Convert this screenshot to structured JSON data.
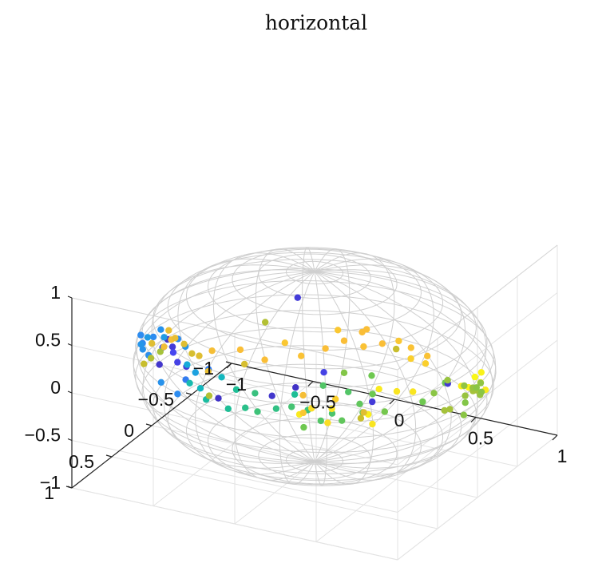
{
  "chart_data": {
    "type": "scatter",
    "title": "horizontal",
    "xlabel": "",
    "ylabel": "",
    "zlabel": "",
    "xlim": [
      -1,
      1
    ],
    "ylim": [
      -1,
      1
    ],
    "zlim": [
      -1,
      1
    ],
    "xticks": [
      "−1",
      "−0.5",
      "0",
      "0.5",
      "1"
    ],
    "yticks": [
      "−1",
      "−0.5",
      "0",
      "0.5",
      "1"
    ],
    "zticks": [
      "−1",
      "−0.5",
      "0",
      "0.5",
      "1"
    ],
    "grid": true,
    "surface": "unit sphere wireframe",
    "colormap": "parula",
    "points": [
      {
        "x": -0.55,
        "y": 0.72,
        "z": 0.55,
        "c": 0.05
      },
      {
        "x": -0.48,
        "y": 0.8,
        "z": 0.55,
        "c": 0.08
      },
      {
        "x": -0.5,
        "y": 0.75,
        "z": 0.45,
        "c": 0.12
      },
      {
        "x": -0.42,
        "y": 0.86,
        "z": 0.45,
        "c": 0.1
      },
      {
        "x": -0.6,
        "y": 0.68,
        "z": 0.42,
        "c": 0.15
      },
      {
        "x": -0.38,
        "y": 0.83,
        "z": 0.4,
        "c": 0.08
      },
      {
        "x": -0.45,
        "y": 0.7,
        "z": 0.5,
        "c": 0.28
      },
      {
        "x": -0.52,
        "y": 0.65,
        "z": 0.52,
        "c": 0.25
      },
      {
        "x": -0.35,
        "y": 0.9,
        "z": 0.32,
        "c": 0.22
      },
      {
        "x": -0.62,
        "y": 0.62,
        "z": 0.48,
        "c": 0.3
      },
      {
        "x": -0.4,
        "y": 0.78,
        "z": 0.38,
        "c": 0.35
      },
      {
        "x": -0.3,
        "y": 0.88,
        "z": 0.4,
        "c": 0.32
      },
      {
        "x": -0.58,
        "y": 0.76,
        "z": 0.3,
        "c": 0.06
      },
      {
        "x": -0.66,
        "y": 0.58,
        "z": 0.52,
        "c": 0.27
      },
      {
        "x": -0.72,
        "y": 0.55,
        "z": 0.4,
        "c": 0.25
      },
      {
        "x": -0.78,
        "y": 0.5,
        "z": 0.34,
        "c": 0.3
      },
      {
        "x": -0.7,
        "y": 0.65,
        "z": 0.28,
        "c": 0.26
      },
      {
        "x": -0.85,
        "y": 0.42,
        "z": 0.2,
        "c": 0.24
      },
      {
        "x": -0.88,
        "y": 0.38,
        "z": 0.15,
        "c": 0.28
      },
      {
        "x": -0.8,
        "y": 0.52,
        "z": 0.22,
        "c": 0.27
      },
      {
        "x": -0.92,
        "y": 0.3,
        "z": 0.18,
        "c": 0.25
      },
      {
        "x": -0.35,
        "y": 0.85,
        "z": 0.25,
        "c": 0.45
      },
      {
        "x": -0.25,
        "y": 0.92,
        "z": 0.28,
        "c": 0.42
      },
      {
        "x": -0.2,
        "y": 0.95,
        "z": 0.2,
        "c": 0.48
      },
      {
        "x": -0.12,
        "y": 0.96,
        "z": 0.25,
        "c": 0.05
      },
      {
        "x": -0.05,
        "y": 0.98,
        "z": 0.18,
        "c": 0.5
      },
      {
        "x": 0.05,
        "y": 0.97,
        "z": 0.22,
        "c": 0.52
      },
      {
        "x": 0.12,
        "y": 0.96,
        "z": 0.2,
        "c": 0.55
      },
      {
        "x": 0.22,
        "y": 0.93,
        "z": 0.25,
        "c": 0.53
      },
      {
        "x": 0.3,
        "y": 0.9,
        "z": 0.28,
        "c": 0.56
      },
      {
        "x": 0.38,
        "y": 0.86,
        "z": 0.25,
        "c": 0.55
      },
      {
        "x": 0.45,
        "y": 0.84,
        "z": 0.15,
        "c": 0.58
      },
      {
        "x": 0.5,
        "y": 0.8,
        "z": 0.22,
        "c": 0.57
      },
      {
        "x": 0.55,
        "y": 0.78,
        "z": 0.15,
        "c": 0.6
      },
      {
        "x": 0.35,
        "y": 0.85,
        "z": 0.05,
        "c": 0.62
      },
      {
        "x": 0.28,
        "y": 0.82,
        "z": 0.35,
        "c": 0.5
      },
      {
        "x": 0.18,
        "y": 0.9,
        "z": 0.35,
        "c": 0.06
      },
      {
        "x": 0.42,
        "y": 0.75,
        "z": 0.45,
        "c": 0.58
      },
      {
        "x": 0.55,
        "y": 0.7,
        "z": 0.4,
        "c": 0.58
      },
      {
        "x": 0.62,
        "y": 0.7,
        "z": 0.3,
        "c": 0.6
      },
      {
        "x": 0.65,
        "y": 0.6,
        "z": 0.35,
        "c": 0.62
      },
      {
        "x": 0.6,
        "y": 0.62,
        "z": 0.15,
        "c": 0.6
      },
      {
        "x": 0.7,
        "y": 0.55,
        "z": 0.15,
        "c": 0.63
      },
      {
        "x": 0.4,
        "y": 0.7,
        "z": 0.55,
        "c": 0.1
      },
      {
        "x": 0.5,
        "y": 0.65,
        "z": 0.55,
        "c": 0.65
      },
      {
        "x": 0.62,
        "y": 0.55,
        "z": 0.5,
        "c": 0.62
      },
      {
        "x": 0.75,
        "y": 0.5,
        "z": 0.35,
        "c": 0.95
      },
      {
        "x": 0.68,
        "y": 0.58,
        "z": 0.4,
        "c": 0.96
      },
      {
        "x": 0.8,
        "y": 0.4,
        "z": 0.3,
        "c": 0.95
      },
      {
        "x": 0.85,
        "y": 0.38,
        "z": 0.2,
        "c": 0.62
      },
      {
        "x": 0.88,
        "y": 0.3,
        "z": 0.25,
        "c": 0.66
      },
      {
        "x": 0.9,
        "y": 0.2,
        "z": 0.3,
        "c": 0.62
      },
      {
        "x": 0.95,
        "y": 0.1,
        "z": 0.22,
        "c": 0.97
      },
      {
        "x": 0.97,
        "y": 0.05,
        "z": 0.18,
        "c": 0.98
      },
      {
        "x": 0.96,
        "y": -0.05,
        "z": 0.22,
        "c": 0.99
      },
      {
        "x": 0.98,
        "y": -0.08,
        "z": 0.15,
        "c": 0.97
      },
      {
        "x": 0.95,
        "y": -0.15,
        "z": 0.2,
        "c": 0.98
      },
      {
        "x": 0.99,
        "y": -0.12,
        "z": 0.05,
        "c": 0.96
      },
      {
        "x": 0.92,
        "y": 0.25,
        "z": 0.05,
        "c": 0.7
      },
      {
        "x": 0.9,
        "y": -0.05,
        "z": 0.0,
        "c": 0.68
      },
      {
        "x": 0.92,
        "y": -0.15,
        "z": 0.0,
        "c": 0.7
      },
      {
        "x": 0.88,
        "y": 0.1,
        "z": -0.05,
        "c": 0.7
      },
      {
        "x": 0.85,
        "y": -0.25,
        "z": -0.1,
        "c": 0.7
      },
      {
        "x": 0.8,
        "y": -0.35,
        "z": -0.15,
        "c": 0.68
      },
      {
        "x": 0.82,
        "y": -0.4,
        "z": -0.25,
        "c": 0.68
      },
      {
        "x": 0.78,
        "y": -0.5,
        "z": -0.3,
        "c": 0.66
      },
      {
        "x": 0.75,
        "y": -0.55,
        "z": -0.25,
        "c": 0.67
      },
      {
        "x": 0.7,
        "y": -0.6,
        "z": -0.35,
        "c": 0.66
      },
      {
        "x": 0.68,
        "y": -0.5,
        "z": -0.45,
        "c": 0.65
      },
      {
        "x": 0.72,
        "y": -0.4,
        "z": -0.5,
        "c": 0.66
      },
      {
        "x": 0.6,
        "y": -0.65,
        "z": -0.4,
        "c": 0.67
      },
      {
        "x": 0.6,
        "y": 0.5,
        "z": -0.05,
        "c": 0.95
      },
      {
        "x": 0.55,
        "y": 0.45,
        "z": 0.0,
        "c": 0.97
      },
      {
        "x": 0.4,
        "y": 0.6,
        "z": 0.1,
        "c": 0.95
      },
      {
        "x": 0.3,
        "y": 0.65,
        "z": 0.1,
        "c": 0.93
      },
      {
        "x": 0.25,
        "y": 0.7,
        "z": 0.05,
        "c": 0.96
      },
      {
        "x": 0.48,
        "y": 0.4,
        "z": -0.1,
        "c": 0.75
      },
      {
        "x": 0.4,
        "y": 0.2,
        "z": -0.2,
        "c": 0.8
      },
      {
        "x": 0.35,
        "y": 0.55,
        "z": -0.1,
        "c": 0.93
      },
      {
        "x": 0.2,
        "y": 0.55,
        "z": -0.05,
        "c": 0.88
      },
      {
        "x": 0.15,
        "y": 0.45,
        "z": 0.05,
        "c": 0.85
      },
      {
        "x": 0.3,
        "y": 0.35,
        "z": 0.0,
        "c": 0.9
      },
      {
        "x": -0.95,
        "y": 0.1,
        "z": -0.05,
        "c": 0.8
      },
      {
        "x": -0.92,
        "y": -0.05,
        "z": 0.0,
        "c": 0.82
      },
      {
        "x": -0.9,
        "y": 0.05,
        "z": -0.1,
        "c": 0.84
      },
      {
        "x": -0.88,
        "y": 0.0,
        "z": -0.05,
        "c": 0.85
      },
      {
        "x": -0.93,
        "y": -0.15,
        "z": -0.15,
        "c": 0.82
      },
      {
        "x": -0.95,
        "y": 0.2,
        "z": -0.2,
        "c": 0.75
      },
      {
        "x": -0.85,
        "y": -0.1,
        "z": -0.15,
        "c": 0.8
      },
      {
        "x": -0.98,
        "y": 0.05,
        "z": -0.25,
        "c": 0.72
      },
      {
        "x": -0.8,
        "y": 0.3,
        "z": 0.05,
        "c": 0.7
      },
      {
        "x": -0.9,
        "y": -0.3,
        "z": -0.4,
        "c": 0.78
      },
      {
        "x": -0.88,
        "y": -0.35,
        "z": -0.45,
        "c": 0.8
      },
      {
        "x": -0.85,
        "y": -0.45,
        "z": -0.45,
        "c": 0.85
      },
      {
        "x": -0.8,
        "y": -0.3,
        "z": -0.55,
        "c": 0.82
      },
      {
        "x": -0.75,
        "y": -0.6,
        "z": -0.5,
        "c": 0.86
      },
      {
        "x": -0.7,
        "y": -0.55,
        "z": -0.6,
        "c": 0.78
      },
      {
        "x": -0.6,
        "y": -0.6,
        "z": -0.55,
        "c": 0.86
      },
      {
        "x": -0.55,
        "y": -0.75,
        "z": -0.45,
        "c": 0.88
      },
      {
        "x": -0.45,
        "y": -0.75,
        "z": -0.55,
        "c": 0.87
      },
      {
        "x": -0.35,
        "y": -0.85,
        "z": -0.5,
        "c": 0.86
      },
      {
        "x": -0.25,
        "y": -0.88,
        "z": -0.4,
        "c": 0.86
      },
      {
        "x": -0.15,
        "y": -0.92,
        "z": -0.45,
        "c": 0.87
      },
      {
        "x": -0.05,
        "y": -0.95,
        "z": -0.4,
        "c": 0.86
      },
      {
        "x": 0.05,
        "y": -0.92,
        "z": -0.4,
        "c": 0.75
      },
      {
        "x": 0.15,
        "y": -0.9,
        "z": -0.45,
        "c": 0.9
      },
      {
        "x": 0.25,
        "y": -0.88,
        "z": -0.45,
        "c": 0.9
      },
      {
        "x": 0.2,
        "y": -0.8,
        "z": -0.25,
        "c": 0.87
      },
      {
        "x": 0.1,
        "y": -0.85,
        "z": -0.25,
        "c": 0.88
      },
      {
        "x": -0.1,
        "y": -0.8,
        "z": -0.2,
        "c": 0.86
      },
      {
        "x": -0.2,
        "y": -0.7,
        "z": -0.15,
        "c": 0.88
      },
      {
        "x": 0.3,
        "y": -0.8,
        "z": -0.3,
        "c": 0.87
      },
      {
        "x": 0.45,
        "y": -0.75,
        "z": -0.5,
        "c": 0.07
      },
      {
        "x": 0.4,
        "y": -0.85,
        "z": -0.55,
        "c": 0.68
      },
      {
        "x": 0.05,
        "y": -0.55,
        "z": 0.05,
        "c": 0.86
      },
      {
        "x": -0.3,
        "y": -0.4,
        "z": 0.35,
        "c": 0.08
      },
      {
        "x": -0.45,
        "y": -0.3,
        "z": 0.1,
        "c": 0.72
      },
      {
        "x": -0.5,
        "y": 0.3,
        "z": -0.3,
        "c": 0.72
      },
      {
        "x": 0.55,
        "y": 0.4,
        "z": 0.1,
        "c": 0.08
      },
      {
        "x": 0.3,
        "y": 0.85,
        "z": 0.45,
        "c": 0.05
      },
      {
        "x": -0.2,
        "y": 0.92,
        "z": 0.5,
        "c": 0.22
      },
      {
        "x": -0.1,
        "y": 0.96,
        "z": 0.48,
        "c": 0.42
      },
      {
        "x": 0.0,
        "y": 0.98,
        "z": 0.4,
        "c": 0.5
      },
      {
        "x": 0.1,
        "y": 0.95,
        "z": 0.38,
        "c": 0.54
      },
      {
        "x": -0.4,
        "y": 0.9,
        "z": 0.15,
        "c": 0.25
      },
      {
        "x": -0.55,
        "y": 0.8,
        "z": 0.15,
        "c": 0.27
      }
    ]
  }
}
